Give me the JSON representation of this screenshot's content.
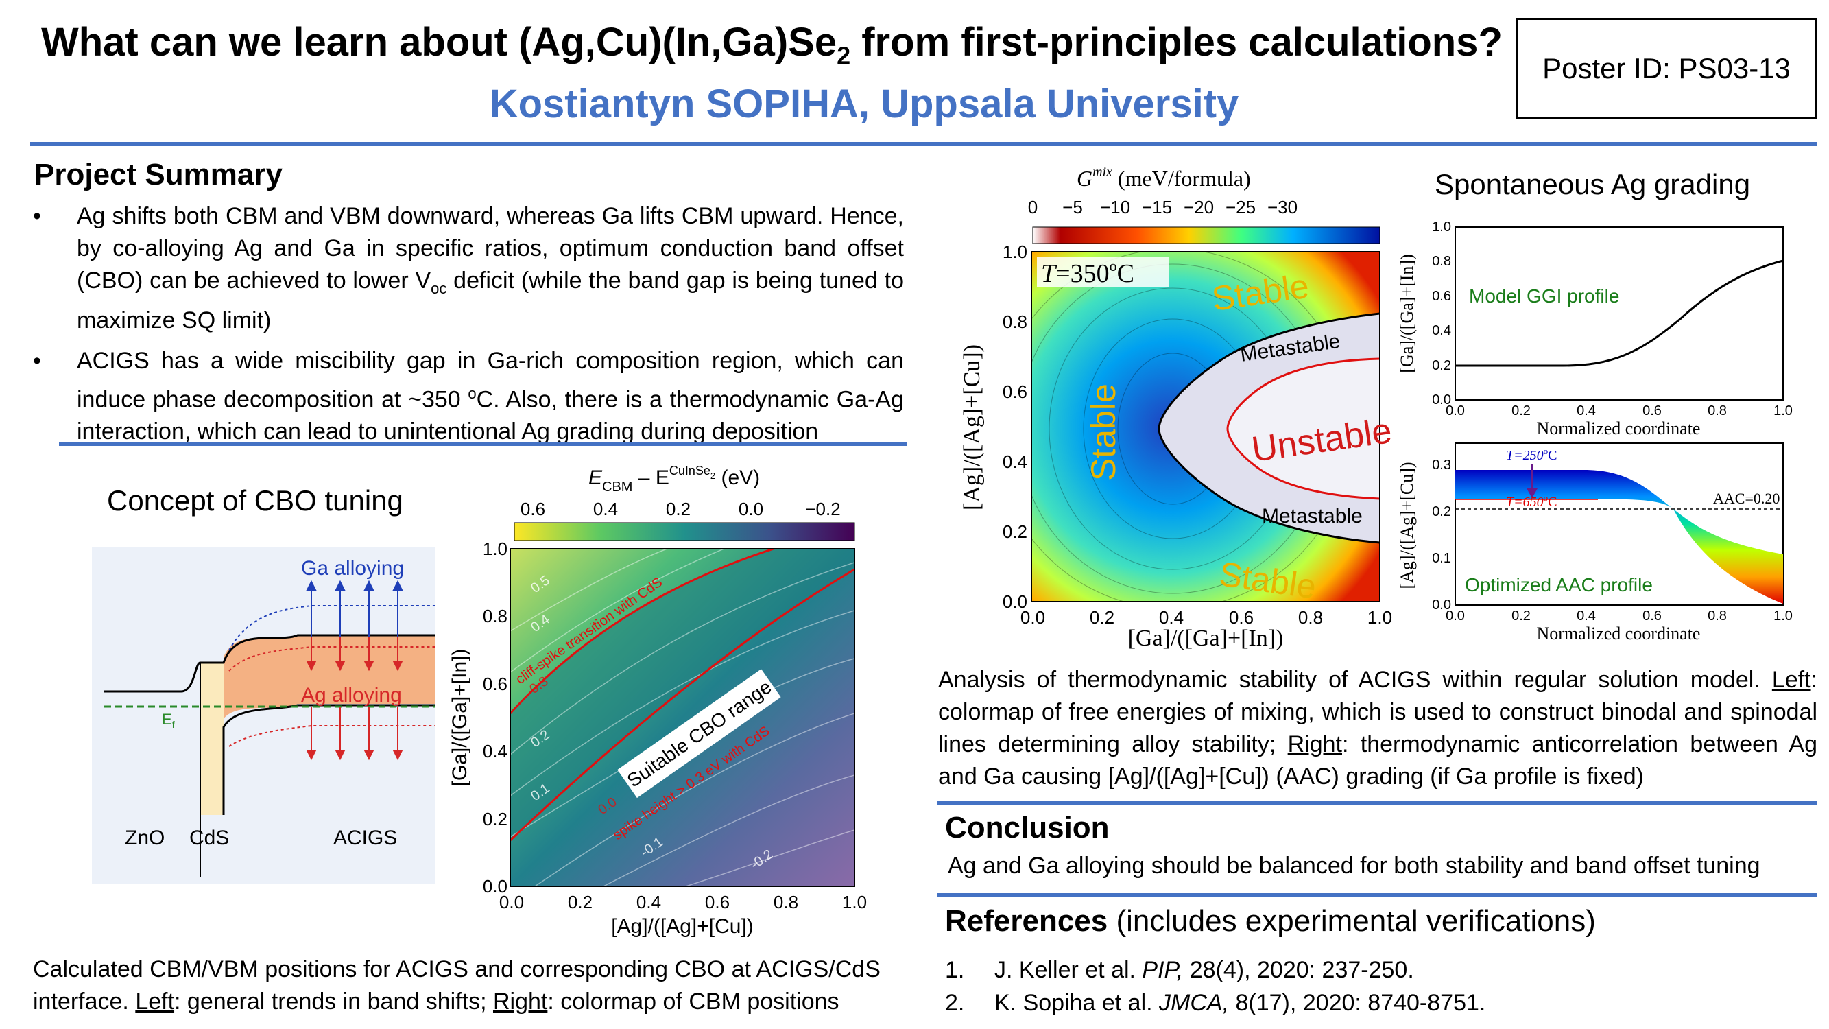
{
  "header": {
    "title_main": "What can we learn about (Ag,Cu)(In,Ga)Se",
    "title_sub": "2",
    "title_end": " from first-principles calculations?",
    "author": "Kostiantyn SOPIHA, Uppsala University",
    "poster_id": "Poster ID: PS03-13"
  },
  "summary": {
    "heading": "Project Summary",
    "bullet1_a": "Ag shifts both CBM and VBM downward, whereas Ga lifts CBM upward. Hence, by co-alloying Ag and Ga in specific ratios, optimum conduction band offset (CBO) can be achieved to lower V",
    "bullet1_sub": "oc",
    "bullet1_b": " deficit (while the band gap is being tuned to maximize SQ limit)",
    "bullet2_a": "ACIGS has a wide miscibility gap in Ga-rich composition region, which can induce phase decomposition at ~350 ",
    "bullet2_sup": "o",
    "bullet2_b": "C. Also, there is a thermodynamic Ga-Ag interaction, which can lead to unintentional Ag grading during deposition"
  },
  "cbo": {
    "heading": "Concept of CBO tuning",
    "ga_label": "Ga alloying",
    "ag_label": "Ag alloying",
    "ef_label": "E",
    "ef_sub": "f",
    "zno": "ZnO",
    "cds": "CdS",
    "acigs": "ACIGS",
    "caption_a": "Calculated CBM/VBM positions for ACIGS and corresponding CBO at ACIGS/CdS interface. ",
    "caption_left": "Left",
    "caption_b": ": general trends in band shifts; ",
    "caption_right": "Right",
    "caption_c": ": colormap of CBM positions"
  },
  "cbm_map": {
    "cbar_label_E": "E",
    "cbar_label_cbm": "CBM",
    "cbar_label_minus": " – E",
    "cbar_label_sup": "CuInSe",
    "cbar_label_sup2": "2",
    "cbar_label_unit": " (eV)",
    "cbar_ticks": [
      "0.6",
      "0.4",
      "0.2",
      "0.0",
      "−0.2"
    ],
    "xlabel": "[Ag]/([Ag]+[Cu])",
    "ylabel": "[Ga]/([Ga]+[In])",
    "xticks": [
      "0.0",
      "0.2",
      "0.4",
      "0.6",
      "0.8",
      "1.0"
    ],
    "yticks": [
      "0.0",
      "0.2",
      "0.4",
      "0.6",
      "0.8",
      "1.0"
    ],
    "contour_labels": [
      "0.5",
      "0.4",
      "0.3",
      "0.2",
      "0.1",
      "0.0",
      "-0.1",
      "-0.2"
    ],
    "cliff_label": "cliff-spike transition with CdS",
    "spike_label": "spike height > 0.3 eV with CdS",
    "suitable_label": "Suitable CBO range"
  },
  "gmix_map": {
    "cbar_label": "G",
    "cbar_sup": "mix",
    "cbar_unit": " (meV/formula)",
    "cbar_ticks": [
      "0",
      "−5",
      "−10",
      "−15",
      "−20",
      "−25",
      "−30"
    ],
    "temp_label": "T",
    "temp_value": "=350",
    "temp_sup": "o",
    "temp_unit": "C",
    "stable": "Stable",
    "metastable": "Metastable",
    "unstable": "Unstable",
    "xlabel": "[Ga]/([Ga]+[In])",
    "ylabel": "[Ag]/([Ag]+[Cu])",
    "xticks": [
      "0.0",
      "0.2",
      "0.4",
      "0.6",
      "0.8",
      "1.0"
    ],
    "yticks": [
      "0.0",
      "0.2",
      "0.4",
      "0.6",
      "0.8",
      "1.0"
    ]
  },
  "grading": {
    "heading": "Spontaneous Ag grading",
    "top_ylabel": "[Ga]/([Ga]+[In])",
    "top_label": "Model GGI profile",
    "top_xlabel": "Normalized coordinate",
    "top_yticks": [
      "0.0",
      "0.2",
      "0.4",
      "0.6",
      "0.8",
      "1.0"
    ],
    "bot_ylabel": "[Ag]/([Ag]+[Cu])",
    "bot_label": "Optimized AAC profile",
    "bot_xlabel": "Normalized coordinate",
    "bot_yticks": [
      "0.0",
      "0.1",
      "0.2",
      "0.3"
    ],
    "xticks": [
      "0.0",
      "0.2",
      "0.4",
      "0.6",
      "0.8",
      "1.0"
    ],
    "t250": "T=250",
    "t650": "T=650",
    "deg": "o",
    "degC": "C",
    "aac": "AAC=0.20"
  },
  "analysis": {
    "text_a": "Analysis of thermodynamic stability of ACIGS within regular solution model. ",
    "left": "Left",
    "text_b": ": colormap of free energies of mixing, which is used to construct binodal and spinodal lines determining alloy stability; ",
    "right": "Right",
    "text_c": ": thermodynamic anticorrelation between Ag and Ga causing [Ag]/([Ag]+[Cu]) (AAC) grading (if Ga profile is fixed)"
  },
  "conclusion": {
    "heading": "Conclusion",
    "text": "Ag and Ga alloying should be balanced for both stability and band offset tuning"
  },
  "references": {
    "heading": "References",
    "heading_note": " (includes experimental verifications)",
    "items": [
      {
        "num": "1.",
        "authors": "J. Keller et al. ",
        "journal": "PIP,",
        "rest": " 28(4), 2020: 237-250."
      },
      {
        "num": "2.",
        "authors": "K. Sopiha et al. ",
        "journal": "JMCA,",
        "rest": " 8(17), 2020: 8740-8751."
      }
    ]
  },
  "colors": {
    "accent": "#4472c4",
    "ga_blue": "#1f3fb8",
    "ag_red": "#d62728",
    "orange_band": "#f4b183",
    "cds_fill": "#fbeabd",
    "ef_green": "#2a8a2a",
    "label_yellow": "#e8b400",
    "label_red": "#d21a1a",
    "model_green": "#1a7d1a"
  }
}
